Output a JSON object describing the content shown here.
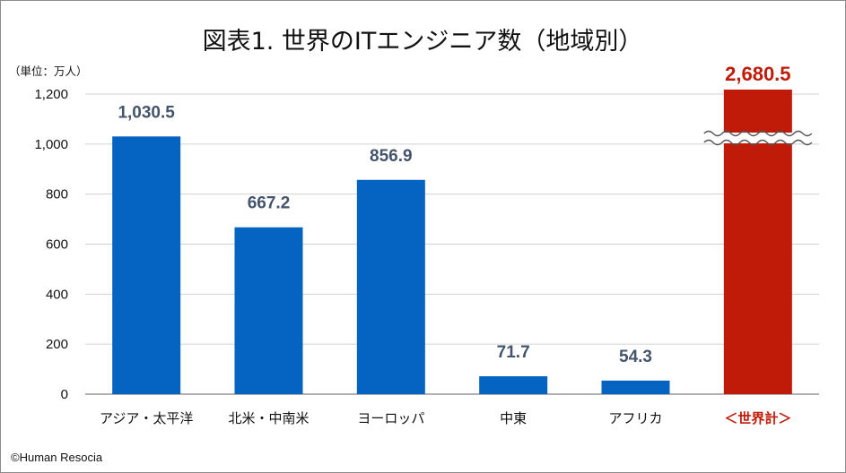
{
  "chart_data": {
    "type": "bar",
    "title": "図表1. 世界のITエンジニア数（地域別）",
    "unit_label": "（単位：万人）",
    "categories": [
      "アジア・太平洋",
      "北米・中南米",
      "ヨーロッパ",
      "中東",
      "アフリカ",
      "＜世界計＞"
    ],
    "values": [
      1030.5,
      667.2,
      856.9,
      71.7,
      54.3,
      2680.5
    ],
    "value_labels": [
      "1,030.5",
      "667.2",
      "856.9",
      "71.7",
      "54.3",
      "2,680.5"
    ],
    "ylim": [
      0,
      1200
    ],
    "yticks": [
      0,
      200,
      400,
      600,
      800,
      1000,
      1200
    ],
    "ytick_labels": [
      "0",
      "200",
      "400",
      "600",
      "800",
      "1,000",
      "1,200"
    ],
    "grid": true,
    "axis_break": true,
    "colors": {
      "regions": "#0563c1",
      "total": "#c01a08",
      "total_label": "#c01a08",
      "value_label": "#44546a"
    }
  },
  "credit": "©Human Resocia"
}
